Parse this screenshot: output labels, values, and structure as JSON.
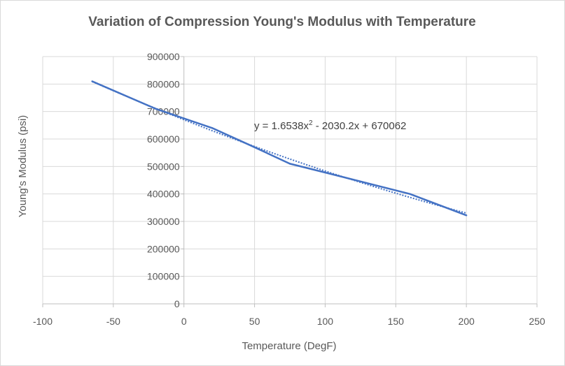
{
  "chart_data": {
    "type": "scatter",
    "title": "Variation of Compression Young's Modulus with Temperature",
    "xlabel": "Temperature (DegF)",
    "ylabel": "Young's Modulus (psi)",
    "xlim": [
      -100,
      250
    ],
    "ylim": [
      0,
      900000
    ],
    "x_ticks": [
      "-100",
      "-50",
      "0",
      "50",
      "100",
      "150",
      "200",
      "250"
    ],
    "y_ticks": [
      "0",
      "100000",
      "200000",
      "300000",
      "400000",
      "500000",
      "600000",
      "700000",
      "800000",
      "900000"
    ],
    "grid": true,
    "legend": "none",
    "series": [
      {
        "line_style": "solid",
        "color": "#4472c4",
        "x": [
          -65,
          -20,
          0,
          20,
          50,
          75,
          100,
          160,
          200
        ],
        "y": [
          810000,
          710000,
          675000,
          640000,
          570000,
          510000,
          478000,
          400000,
          322000
        ]
      }
    ],
    "trendline": {
      "kind": "polynomial-2",
      "line_style": "dotted",
      "color": "#4472c4",
      "coefficients": [
        1.6538,
        -2030.2,
        670062
      ],
      "x_range": [
        -65,
        200
      ],
      "equation_label": {
        "prefix": "y = 1.6538x",
        "superscript": "2",
        "suffix": " - 2030.2x + 670062"
      }
    }
  }
}
